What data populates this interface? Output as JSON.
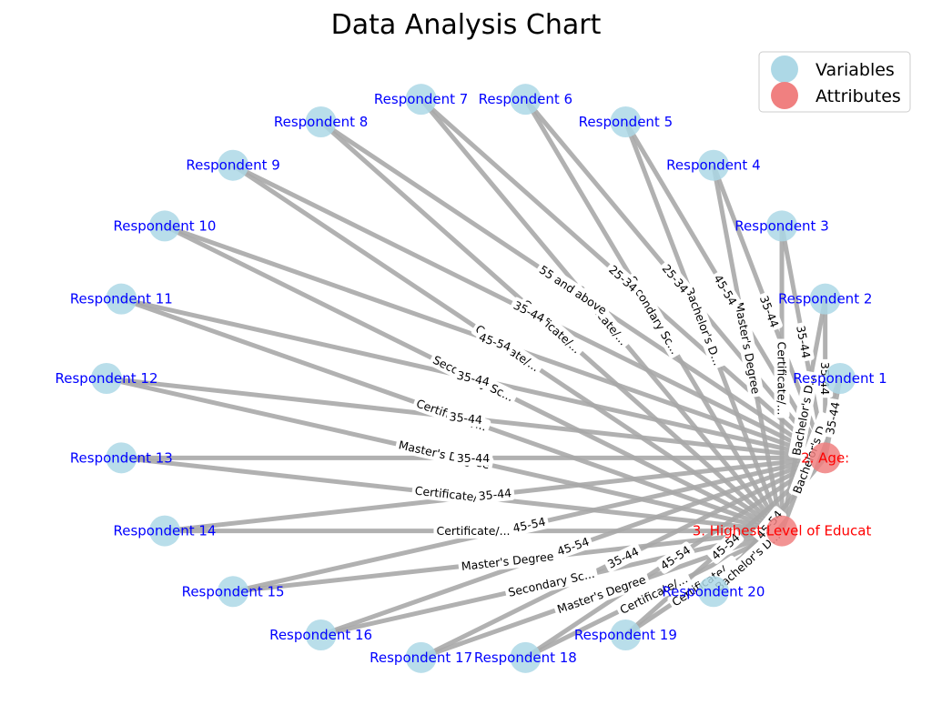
{
  "title": "Data Analysis Chart",
  "colors": {
    "variable_node": "#add8e6",
    "attribute_node": "#f08080",
    "variable_text": "#0000ff",
    "attribute_text": "#ff0000",
    "edge": "#a9a9a9"
  },
  "legend": [
    {
      "label": "Variables",
      "kind": "variable"
    },
    {
      "label": "Attributes",
      "kind": "attribute"
    }
  ],
  "variables": [
    {
      "id": "r1",
      "label": "Respondent 1"
    },
    {
      "id": "r2",
      "label": "Respondent 2"
    },
    {
      "id": "r3",
      "label": "Respondent 3"
    },
    {
      "id": "r4",
      "label": "Respondent 4"
    },
    {
      "id": "r5",
      "label": "Respondent 5"
    },
    {
      "id": "r6",
      "label": "Respondent 6"
    },
    {
      "id": "r7",
      "label": "Respondent 7"
    },
    {
      "id": "r8",
      "label": "Respondent 8"
    },
    {
      "id": "r9",
      "label": "Respondent 9"
    },
    {
      "id": "r10",
      "label": "Respondent 10"
    },
    {
      "id": "r11",
      "label": "Respondent 11"
    },
    {
      "id": "r12",
      "label": "Respondent 12"
    },
    {
      "id": "r13",
      "label": "Respondent 13"
    },
    {
      "id": "r14",
      "label": "Respondent 14"
    },
    {
      "id": "r15",
      "label": "Respondent 15"
    },
    {
      "id": "r16",
      "label": "Respondent 16"
    },
    {
      "id": "r17",
      "label": "Respondent 17"
    },
    {
      "id": "r18",
      "label": "Respondent 18"
    },
    {
      "id": "r19",
      "label": "Respondent 19"
    },
    {
      "id": "r20",
      "label": "Respondent 20"
    }
  ],
  "attributes": [
    {
      "id": "edu",
      "label": "3. Highest Level of Educat"
    },
    {
      "id": "age",
      "label": "2. Age:"
    }
  ],
  "edges": [
    {
      "from": "r1",
      "to": "edu",
      "label": "Bachelor's D..."
    },
    {
      "from": "r1",
      "to": "age",
      "label": "35-44"
    },
    {
      "from": "r2",
      "to": "edu",
      "label": "Bachelor's D..."
    },
    {
      "from": "r2",
      "to": "age",
      "label": "35-44"
    },
    {
      "from": "r3",
      "to": "edu",
      "label": "Certificate/..."
    },
    {
      "from": "r3",
      "to": "age",
      "label": "35-44"
    },
    {
      "from": "r4",
      "to": "edu",
      "label": "Master's Degree"
    },
    {
      "from": "r4",
      "to": "age",
      "label": "35-44"
    },
    {
      "from": "r5",
      "to": "edu",
      "label": "Bachelor's D..."
    },
    {
      "from": "r5",
      "to": "age",
      "label": "45-54"
    },
    {
      "from": "r6",
      "to": "edu",
      "label": "Secondary Sc..."
    },
    {
      "from": "r6",
      "to": "age",
      "label": "25-34"
    },
    {
      "from": "r7",
      "to": "edu",
      "label": "Certificate/..."
    },
    {
      "from": "r7",
      "to": "age",
      "label": "25-34"
    },
    {
      "from": "r8",
      "to": "edu",
      "label": "Certificate/..."
    },
    {
      "from": "r8",
      "to": "age",
      "label": "55 and above"
    },
    {
      "from": "r9",
      "to": "edu",
      "label": "Certificate/..."
    },
    {
      "from": "r9",
      "to": "age",
      "label": "35-44"
    },
    {
      "from": "r10",
      "to": "edu",
      "label": "Secondary Sc..."
    },
    {
      "from": "r10",
      "to": "age",
      "label": "45-54"
    },
    {
      "from": "r11",
      "to": "edu",
      "label": "Certificate/..."
    },
    {
      "from": "r11",
      "to": "age",
      "label": "35-44"
    },
    {
      "from": "r12",
      "to": "edu",
      "label": "Master's Degree"
    },
    {
      "from": "r12",
      "to": "age",
      "label": "35-44"
    },
    {
      "from": "r13",
      "to": "edu",
      "label": "Certificate/..."
    },
    {
      "from": "r13",
      "to": "age",
      "label": "35-44"
    },
    {
      "from": "r14",
      "to": "edu",
      "label": "Certificate/..."
    },
    {
      "from": "r14",
      "to": "age",
      "label": "35-44"
    },
    {
      "from": "r15",
      "to": "edu",
      "label": "Master's Degree"
    },
    {
      "from": "r15",
      "to": "age",
      "label": "45-54"
    },
    {
      "from": "r16",
      "to": "edu",
      "label": "Secondary Sc..."
    },
    {
      "from": "r16",
      "to": "age",
      "label": "45-54"
    },
    {
      "from": "r17",
      "to": "edu",
      "label": "Master's Degree"
    },
    {
      "from": "r17",
      "to": "age",
      "label": "35-44"
    },
    {
      "from": "r18",
      "to": "edu",
      "label": "Certificate/..."
    },
    {
      "from": "r18",
      "to": "age",
      "label": "45-54"
    },
    {
      "from": "r19",
      "to": "edu",
      "label": "Certificate/..."
    },
    {
      "from": "r19",
      "to": "age",
      "label": "45-54"
    },
    {
      "from": "r20",
      "to": "edu",
      "label": "Bachelor's D..."
    },
    {
      "from": "r20",
      "to": "age",
      "label": "45-54"
    }
  ]
}
